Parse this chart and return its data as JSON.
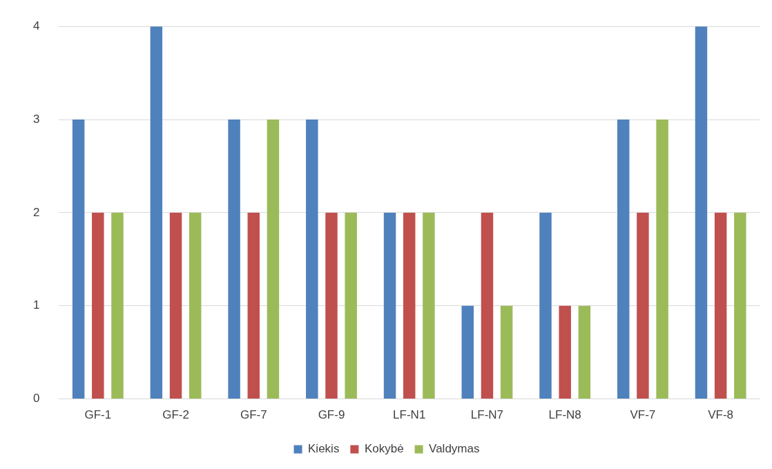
{
  "chart_data": {
    "type": "bar",
    "categories": [
      "GF-1",
      "GF-2",
      "GF-7",
      "GF-9",
      "LF-N1",
      "LF-N7",
      "LF-N8",
      "VF-7",
      "VF-8"
    ],
    "series": [
      {
        "name": "Kiekis",
        "color": "#4f81bd",
        "values": [
          3,
          4,
          3,
          3,
          2,
          1,
          2,
          3,
          4
        ]
      },
      {
        "name": "Kokybė",
        "color": "#c0504d",
        "values": [
          2,
          2,
          2,
          2,
          2,
          2,
          1,
          2,
          2
        ]
      },
      {
        "name": "Valdymas",
        "color": "#9bbb59",
        "values": [
          2,
          2,
          3,
          2,
          2,
          1,
          1,
          3,
          2
        ]
      }
    ],
    "ylim": [
      0,
      4
    ],
    "yticks": [
      0,
      1,
      2,
      3,
      4
    ],
    "grid": "y",
    "legend": "bottom"
  }
}
